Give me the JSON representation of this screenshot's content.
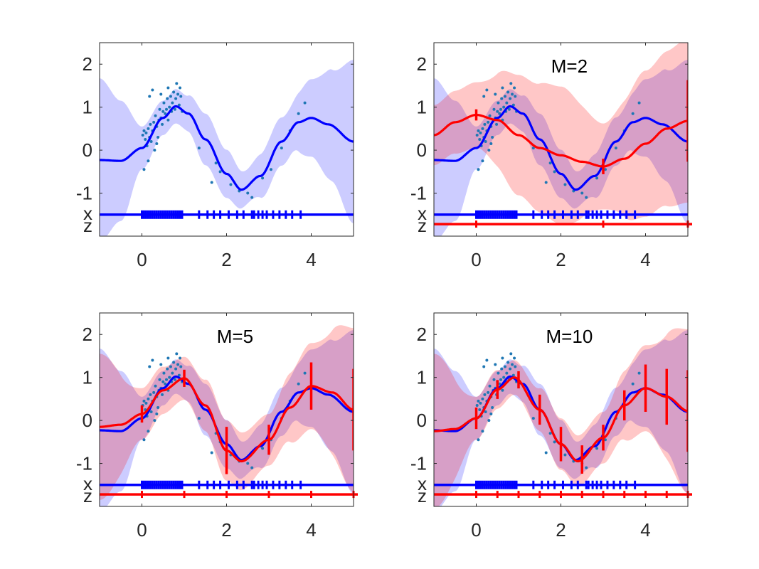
{
  "colors": {
    "gp": "#0000ff",
    "gp_band": "#ccccff",
    "sparse": "#ff0000",
    "sparse_band": "#ffc9c2",
    "overlap_band": "#c98fc0",
    "points": "#1f77b4",
    "axes": "#262626"
  },
  "chart_data": [
    {
      "type": "line",
      "title": "",
      "xlim": [
        -1,
        5
      ],
      "ylim": [
        -2.0,
        2.5
      ],
      "xticks": [
        "0",
        "2",
        "4"
      ],
      "yticks": [
        "2",
        "1",
        "0",
        "-1"
      ],
      "row_labels": [
        "x",
        "z"
      ],
      "has_sparse": false
    },
    {
      "type": "line",
      "title": "M=2",
      "xlim": [
        -1,
        5
      ],
      "ylim": [
        -2.0,
        2.5
      ],
      "xticks": [
        "0",
        "2",
        "4"
      ],
      "yticks": [
        "2",
        "1",
        "0",
        "-1"
      ],
      "row_labels": [
        "x",
        "z"
      ],
      "has_sparse": true,
      "inducing_z": [
        0,
        3,
        5
      ]
    },
    {
      "type": "line",
      "title": "M=5",
      "xlim": [
        -1,
        5
      ],
      "ylim": [
        -2.0,
        2.5
      ],
      "xticks": [
        "0",
        "2",
        "4"
      ],
      "yticks": [
        "2",
        "1",
        "0",
        "-1"
      ],
      "row_labels": [
        "x",
        "z"
      ],
      "has_sparse": true,
      "inducing_z": [
        0,
        1,
        2,
        3,
        4,
        5
      ]
    },
    {
      "type": "line",
      "title": "M=10",
      "xlim": [
        -1,
        5
      ],
      "ylim": [
        -2.0,
        2.5
      ],
      "xticks": [
        "0",
        "2",
        "4"
      ],
      "yticks": [
        "2",
        "1",
        "0",
        "-1"
      ],
      "row_labels": [
        "x",
        "z"
      ],
      "has_sparse": true,
      "inducing_z": [
        0,
        0.5,
        1,
        1.5,
        2,
        2.5,
        3,
        3.5,
        4,
        4.5,
        5
      ]
    }
  ],
  "shared": {
    "gp_mean": [
      [
        -1,
        -0.23
      ],
      [
        -0.5,
        -0.25
      ],
      [
        0,
        0.05
      ],
      [
        0.5,
        0.75
      ],
      [
        0.8,
        1.02
      ],
      [
        1.1,
        0.85
      ],
      [
        1.5,
        0.25
      ],
      [
        2.0,
        -0.55
      ],
      [
        2.35,
        -0.92
      ],
      [
        2.8,
        -0.6
      ],
      [
        3.3,
        0.2
      ],
      [
        3.7,
        0.65
      ],
      [
        4.0,
        0.75
      ],
      [
        4.4,
        0.6
      ],
      [
        5.0,
        0.2
      ]
    ],
    "gp_std": [
      [
        -1,
        0.95
      ],
      [
        -0.5,
        0.7
      ],
      [
        0,
        0.25
      ],
      [
        0.5,
        0.2
      ],
      [
        1.0,
        0.2
      ],
      [
        1.5,
        0.3
      ],
      [
        2.0,
        0.28
      ],
      [
        2.5,
        0.2
      ],
      [
        3.0,
        0.28
      ],
      [
        3.5,
        0.28
      ],
      [
        4.0,
        0.45
      ],
      [
        4.5,
        0.65
      ],
      [
        5.0,
        0.95
      ]
    ],
    "sparse_mean": {
      "M=2": [
        [
          -1,
          0.35
        ],
        [
          -0.5,
          0.65
        ],
        [
          0,
          0.82
        ],
        [
          0.5,
          0.7
        ],
        [
          1,
          0.35
        ],
        [
          1.5,
          0.05
        ],
        [
          2,
          -0.12
        ],
        [
          2.5,
          -0.27
        ],
        [
          3,
          -0.38
        ],
        [
          3.5,
          -0.2
        ],
        [
          4,
          0.15
        ],
        [
          4.5,
          0.5
        ],
        [
          5,
          0.68
        ]
      ],
      "M=5": [
        [
          -1,
          -0.15
        ],
        [
          -0.5,
          -0.1
        ],
        [
          0,
          0.15
        ],
        [
          0.5,
          0.7
        ],
        [
          1,
          0.98
        ],
        [
          1.5,
          0.35
        ],
        [
          2,
          -0.7
        ],
        [
          2.35,
          -0.95
        ],
        [
          3,
          -0.45
        ],
        [
          3.5,
          0.3
        ],
        [
          4,
          0.8
        ],
        [
          4.5,
          0.65
        ],
        [
          5,
          0.25
        ]
      ],
      "M=10": [
        [
          -1,
          -0.25
        ],
        [
          -0.5,
          -0.2
        ],
        [
          0,
          0.05
        ],
        [
          0.5,
          0.72
        ],
        [
          0.9,
          1.0
        ],
        [
          1.5,
          0.25
        ],
        [
          2,
          -0.55
        ],
        [
          2.4,
          -0.95
        ],
        [
          3,
          -0.4
        ],
        [
          3.5,
          0.35
        ],
        [
          4,
          0.75
        ],
        [
          4.5,
          0.55
        ],
        [
          5,
          0.22
        ]
      ]
    },
    "sparse_std": {
      "M=2": [
        [
          -1,
          0.35
        ],
        [
          0,
          0.38
        ],
        [
          1,
          0.7
        ],
        [
          2,
          0.8
        ],
        [
          3,
          0.5
        ],
        [
          4,
          0.85
        ],
        [
          5,
          0.95
        ]
      ],
      "M=5": [
        [
          -1,
          0.85
        ],
        [
          0,
          0.3
        ],
        [
          1,
          0.25
        ],
        [
          2,
          0.35
        ],
        [
          3,
          0.3
        ],
        [
          4,
          0.5
        ],
        [
          5,
          0.95
        ]
      ],
      "M=10": [
        [
          -1,
          0.9
        ],
        [
          0,
          0.25
        ],
        [
          1,
          0.2
        ],
        [
          2,
          0.3
        ],
        [
          3,
          0.3
        ],
        [
          4,
          0.5
        ],
        [
          5,
          0.95
        ]
      ]
    },
    "sparse_errbar_halfwidth": {
      "M=2": [
        0.13,
        0.18,
        0.95
      ],
      "M=5": [
        0.2,
        0.2,
        0.55,
        0.35,
        0.55,
        0.95
      ],
      "M=10": [
        0.25,
        0.22,
        0.2,
        0.35,
        0.4,
        0.33,
        0.3,
        0.35,
        0.55,
        0.65,
        0.95
      ]
    },
    "x_ticks_pos": [
      0,
      0.05,
      0.1,
      0.15,
      0.2,
      0.25,
      0.3,
      0.35,
      0.4,
      0.45,
      0.5,
      0.55,
      0.6,
      0.65,
      0.7,
      0.75,
      0.8,
      0.85,
      0.9,
      0.95,
      1.35,
      1.55,
      1.7,
      1.85,
      2.05,
      2.25,
      2.4,
      2.6,
      2.65,
      2.75,
      2.85,
      2.95,
      3.1,
      3.25,
      3.4,
      3.55,
      3.75
    ],
    "points": [
      [
        0.02,
        0.35
      ],
      [
        0.05,
        0.45
      ],
      [
        0.08,
        0.25
      ],
      [
        0.1,
        0.4
      ],
      [
        0.12,
        0.1
      ],
      [
        0.15,
        0.5
      ],
      [
        0.18,
        0.3
      ],
      [
        0.2,
        0.6
      ],
      [
        0.22,
        0.2
      ],
      [
        0.25,
        0.45
      ],
      [
        0.28,
        0.65
      ],
      [
        0.3,
        0.0
      ],
      [
        0.32,
        0.8
      ],
      [
        0.35,
        0.55
      ],
      [
        0.38,
        0.3
      ],
      [
        0.4,
        0.7
      ],
      [
        0.42,
        0.95
      ],
      [
        0.45,
        0.75
      ],
      [
        0.48,
        0.6
      ],
      [
        0.5,
        0.9
      ],
      [
        0.52,
        1.1
      ],
      [
        0.55,
        0.85
      ],
      [
        0.58,
        0.95
      ],
      [
        0.6,
        1.2
      ],
      [
        0.62,
        0.7
      ],
      [
        0.65,
        1.0
      ],
      [
        0.68,
        1.25
      ],
      [
        0.7,
        0.9
      ],
      [
        0.72,
        1.1
      ],
      [
        0.75,
        1.35
      ],
      [
        0.78,
        0.95
      ],
      [
        0.8,
        1.2
      ],
      [
        0.82,
        1.55
      ],
      [
        0.85,
        1.3
      ],
      [
        0.88,
        1.05
      ],
      [
        0.9,
        1.45
      ],
      [
        0.92,
        1.25
      ],
      [
        0.95,
        0.9
      ],
      [
        0.18,
        1.25
      ],
      [
        0.25,
        1.4
      ],
      [
        0.45,
        1.3
      ],
      [
        0.62,
        1.45
      ],
      [
        0.05,
        -0.45
      ],
      [
        0.15,
        -0.25
      ],
      [
        0.35,
        0.15
      ],
      [
        1.35,
        0.05
      ],
      [
        1.65,
        -0.75
      ],
      [
        1.85,
        -0.5
      ],
      [
        2.1,
        -0.8
      ],
      [
        2.3,
        -0.95
      ],
      [
        2.5,
        -1.0
      ],
      [
        2.6,
        -1.1
      ],
      [
        2.85,
        -0.65
      ],
      [
        3.05,
        -0.45
      ],
      [
        3.3,
        0.05
      ],
      [
        3.5,
        0.45
      ],
      [
        3.7,
        0.85
      ],
      [
        3.85,
        1.1
      ],
      [
        1.75,
        -0.3
      ]
    ]
  }
}
